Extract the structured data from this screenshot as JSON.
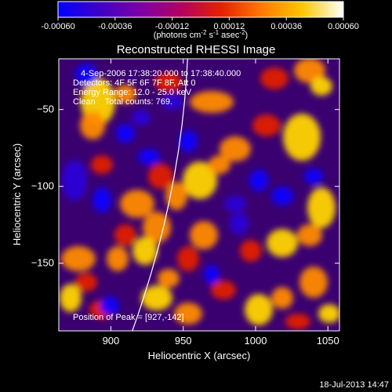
{
  "colorbar": {
    "tick_labels": [
      "-0.00060",
      "-0.00036",
      "-0.00012",
      "0.00012",
      "0.00036",
      "0.00060"
    ],
    "ticks": [
      -0.0006,
      -0.00036,
      -0.00012,
      0.00012,
      0.00036,
      0.0006
    ],
    "range": [
      -0.0006,
      0.0006
    ],
    "unit_prefix": "(photons cm",
    "unit_exp1": "-2",
    "unit_mid": " s",
    "unit_exp2": "-1",
    "unit_mid2": " asec",
    "unit_exp3": "-2",
    "unit_suffix": ")",
    "stops": [
      "#0000ff",
      "#3e00c8",
      "#7a00a8",
      "#b30062",
      "#e62000",
      "#ff7a00",
      "#ffc800",
      "#ffffff"
    ]
  },
  "chart_data": {
    "type": "heatmap",
    "title": "Reconstructed RHESSI Image",
    "xlabel": "Heliocentric X (arcsec)",
    "ylabel": "Heliocentric Y (arcsec)",
    "xlim": [
      864,
      1058
    ],
    "ylim": [
      -194,
      -17
    ],
    "xticks": [
      900,
      950,
      1000,
      1050
    ],
    "yticks": [
      -150,
      -100,
      -50
    ],
    "limb": {
      "x_top": 953,
      "x_bottom": 930
    },
    "peak": {
      "x": 927,
      "y": -142
    },
    "colors": {
      "limb": "#ffffff",
      "text": "#ffffff",
      "background": "#000000"
    }
  },
  "info_lines": [
    "4-Sep-2006 17:38:20.000 to 17:38:40.000",
    "Detectors: 4F 5F 6F 7F 8F, Att 0",
    "Energy Range: 12.0 - 25.0 keV",
    "Clean    Total counts: 769."
  ],
  "peak_label": "Position of Peak = [927,-142]",
  "footer_date": "18-Jul-2013 14:47"
}
